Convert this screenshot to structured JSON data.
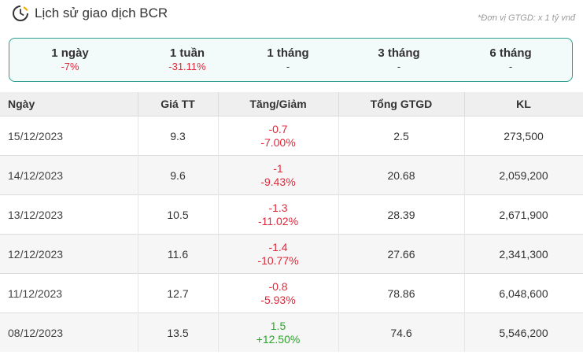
{
  "header": {
    "title": "Lịch sử giao dịch BCR",
    "unit_note": "*Đơn vị GTGD: x 1 tỷ vnđ"
  },
  "periods": [
    {
      "label": "1 ngày",
      "value": "-7%",
      "trend": "neg"
    },
    {
      "label": "1 tuần",
      "value": "-31.11%",
      "trend": "neg"
    },
    {
      "label": "1 tháng",
      "value": "-",
      "trend": "none"
    },
    {
      "label": "3 tháng",
      "value": "-",
      "trend": "none"
    },
    {
      "label": "6 tháng",
      "value": "-",
      "trend": "none"
    }
  ],
  "table": {
    "columns": [
      "Ngày",
      "Giá TT",
      "Tăng/Giảm",
      "Tổng GTGD",
      "KL"
    ],
    "rows": [
      {
        "date": "15/12/2023",
        "price": "9.3",
        "change": "-0.7",
        "change_pct": "-7.00%",
        "trend": "neg",
        "value": "2.5",
        "volume": "273,500"
      },
      {
        "date": "14/12/2023",
        "price": "9.6",
        "change": "-1",
        "change_pct": "-9.43%",
        "trend": "neg",
        "value": "20.68",
        "volume": "2,059,200"
      },
      {
        "date": "13/12/2023",
        "price": "10.5",
        "change": "-1.3",
        "change_pct": "-11.02%",
        "trend": "neg",
        "value": "28.39",
        "volume": "2,671,900"
      },
      {
        "date": "12/12/2023",
        "price": "11.6",
        "change": "-1.4",
        "change_pct": "-10.77%",
        "trend": "neg",
        "value": "27.66",
        "volume": "2,341,300"
      },
      {
        "date": "11/12/2023",
        "price": "12.7",
        "change": "-0.8",
        "change_pct": "-5.93%",
        "trend": "neg",
        "value": "78.86",
        "volume": "6,048,600"
      },
      {
        "date": "08/12/2023",
        "price": "13.5",
        "change": "1.5",
        "change_pct": "+12.50%",
        "trend": "pos",
        "value": "74.6",
        "volume": "5,546,200"
      }
    ]
  },
  "colors": {
    "negative": "#e0283b",
    "positive": "#2aa52a",
    "accent": "#2a9d8f"
  },
  "icons": {
    "title": "history-clock-icon"
  }
}
